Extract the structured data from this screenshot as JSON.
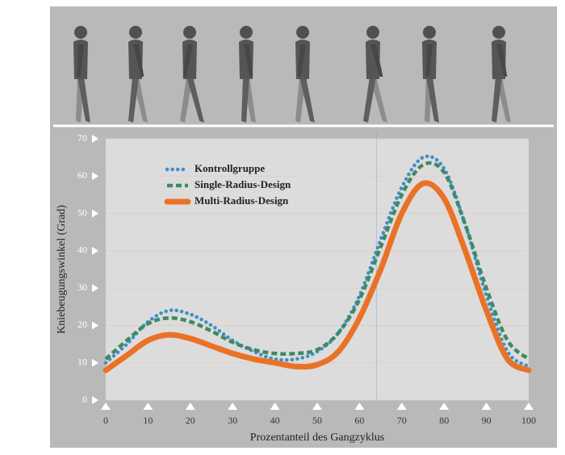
{
  "chart_data": {
    "type": "line",
    "x_label": "Prozentanteil des Gangzyklus",
    "y_label": "Kniebeugungswinkel (Grad)",
    "x": [
      0,
      5,
      10,
      15,
      20,
      25,
      30,
      35,
      40,
      45,
      50,
      55,
      60,
      65,
      70,
      75,
      80,
      85,
      90,
      95,
      100
    ],
    "series": [
      {
        "name": "Kontrollgruppe",
        "color": "#3f8fc9",
        "style": "dotted",
        "values": [
          10,
          15,
          21,
          24,
          23,
          20,
          16,
          13,
          11,
          11,
          13,
          18,
          28,
          43,
          57,
          65,
          62,
          47,
          28,
          13,
          9
        ]
      },
      {
        "name": "Single-Radius-Design",
        "color": "#3f8a62",
        "style": "dashed",
        "values": [
          11,
          16,
          20.5,
          22,
          21,
          18.5,
          15.5,
          13.5,
          12.5,
          12.5,
          13.5,
          18,
          27,
          41,
          55,
          63,
          61,
          47,
          30,
          16,
          11
        ]
      },
      {
        "name": "Multi-Radius-Design",
        "color": "#ea7226",
        "style": "solid",
        "values": [
          8,
          12,
          16,
          17.5,
          16.5,
          14.5,
          12.5,
          11,
          10,
          9,
          9.5,
          13,
          22,
          35,
          50,
          58,
          54,
          40,
          24,
          11,
          8
        ]
      }
    ],
    "xlim": [
      0,
      100
    ],
    "ylim": [
      0,
      70
    ],
    "xticks": [
      0,
      10,
      20,
      30,
      40,
      50,
      60,
      70,
      80,
      90,
      100
    ],
    "yticks": [
      0,
      10,
      20,
      30,
      40,
      50,
      60,
      70
    ],
    "vline_x": 64,
    "grid": true,
    "legend": "upper left"
  }
}
